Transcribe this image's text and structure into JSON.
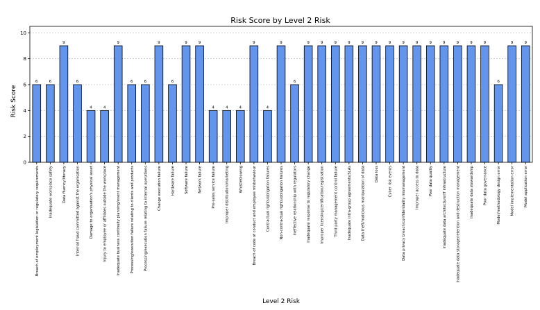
{
  "chart_data": {
    "type": "bar",
    "title": "Risk Score by Level 2 Risk",
    "xlabel": "Level 2 Risk",
    "ylabel": "Risk Score",
    "ylim": [
      0,
      10.5
    ],
    "yticks": [
      0,
      2,
      4,
      6,
      8,
      10
    ],
    "grid": "y-dashed",
    "bar_color": "#6495ED",
    "bar_edge_color": "#000000",
    "categories": [
      "Breach of employment legislation or regulatory requirements",
      "Inadequate workplace safety",
      "Data fluency/literacy",
      "Internal fraud committed against the organisation",
      "Damage to organisation's physical asset",
      "Injury to employee or affiliates outside the workplace",
      "Inadequate business continuity planning/event management",
      "Processing/execution failure relating to clients and products",
      "Processing/execution failure relating to internal operations",
      "Change execution failure",
      "Hardware failure",
      "Software failure",
      "Network failure",
      "Pre-sales service failure",
      "Improper distribution/marketing",
      "Whistleblowing",
      "Breach of code of conduct and employee misbehaviour",
      "Contractual rights/obligation failures",
      "Non-contractual rights/obligation failures",
      "Ineffective relationship with regulators",
      "Inadequate response to regulatory change",
      "Improper licensing/certification/registration",
      "Third party management control failure",
      "Inadequate intra-group agreements/SLAs",
      "Data theft/malicious manipulation of data",
      "Data loss",
      "Cyber risk events",
      "Data privacy breach/confidentiality mismanagement",
      "Improper access to data",
      "Poor data quality",
      "Inadequate data architecture/IT infrastructure",
      "Inadequate data storage/retention and destruction management",
      "Inadequate data stewardship",
      "Poor data governance",
      "Model/methodology design error",
      "Model implementation error",
      "Model application error"
    ],
    "values": [
      6,
      6,
      9,
      6,
      4,
      4,
      9,
      6,
      6,
      9,
      6,
      9,
      9,
      4,
      4,
      4,
      9,
      4,
      9,
      6,
      9,
      9,
      9,
      9,
      9,
      9,
      9,
      9,
      9,
      9,
      9,
      9,
      9,
      9,
      6,
      9,
      9
    ]
  }
}
